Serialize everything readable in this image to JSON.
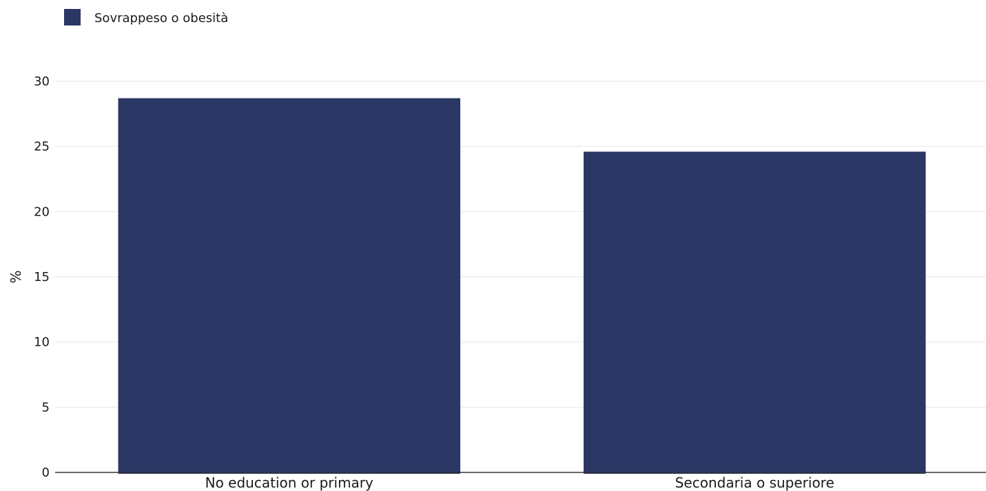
{
  "chart_data": {
    "type": "bar",
    "categories": [
      "No education or primary",
      "Secondaria o superiore"
    ],
    "series": [
      {
        "name": "Sovrappeso o obesità",
        "values": [
          28.7,
          24.6
        ],
        "color": "#2b3764"
      }
    ],
    "xlabel": "",
    "ylabel": "%",
    "ylim": [
      0,
      30
    ],
    "yticks": [
      0,
      5,
      10,
      15,
      20,
      25,
      30
    ],
    "grid": true,
    "legend_position": "top-left"
  }
}
